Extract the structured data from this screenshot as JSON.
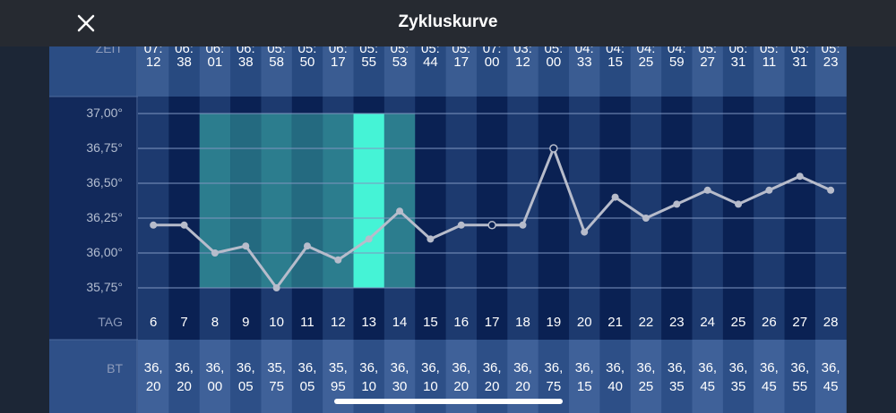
{
  "chart_data": {
    "type": "line",
    "title": "Zykluskurve",
    "time_label": "ZEIT",
    "day_label": "TAG",
    "value_label": "BT",
    "categories": [
      6,
      7,
      8,
      9,
      10,
      11,
      12,
      13,
      14,
      15,
      16,
      17,
      18,
      19,
      20,
      21,
      22,
      23,
      24,
      25,
      26,
      27,
      28
    ],
    "times": [
      "07:12",
      "06:38",
      "06:01",
      "06:38",
      "05:58",
      "05:50",
      "06:17",
      "05:55",
      "05:53",
      "05:44",
      "05:17",
      "07:00",
      "03:12",
      "05:00",
      "04:33",
      "04:15",
      "04:25",
      "04:59",
      "05:27",
      "06:31",
      "05:11",
      "05:31",
      "05:23"
    ],
    "values": [
      36.2,
      36.2,
      36.0,
      36.05,
      35.75,
      36.05,
      35.95,
      36.1,
      36.3,
      36.1,
      36.2,
      36.2,
      36.2,
      36.75,
      36.15,
      36.4,
      36.25,
      36.35,
      36.45,
      36.35,
      36.45,
      36.55,
      36.45
    ],
    "value_labels": [
      "36,20",
      "36,20",
      "36,00",
      "36,05",
      "35,75",
      "36,05",
      "35,95",
      "36,10",
      "36,30",
      "36,10",
      "36,20",
      "36,20",
      "36,20",
      "36,75",
      "36,15",
      "36,40",
      "36,25",
      "36,35",
      "36,45",
      "36,35",
      "36,45",
      "36,55",
      "36,45"
    ],
    "markers": [
      "filled",
      "filled",
      "filled",
      "filled",
      "filled",
      "filled",
      "filled",
      "filled",
      "filled",
      "filled",
      "filled",
      "open",
      "filled",
      "open",
      "filled",
      "filled",
      "filled",
      "filled",
      "filled",
      "filled",
      "filled",
      "filled",
      "filled"
    ],
    "color": "#b7bccb",
    "fertile_days": [
      8,
      14
    ],
    "fertile_color": "#2f8a94",
    "ovulation_day": 13,
    "ovulation_color": "#45f3d6",
    "ylim": [
      35.75,
      37.0
    ],
    "yticks": [
      {
        "value": 35.75,
        "label": "35,75°"
      },
      {
        "value": 36.0,
        "label": "36,00°"
      },
      {
        "value": 36.25,
        "label": "36,25°"
      },
      {
        "value": 36.5,
        "label": "36,50°"
      },
      {
        "value": 36.75,
        "label": "36,75°"
      },
      {
        "value": 37.0,
        "label": "37,00°"
      }
    ],
    "grid": true
  }
}
